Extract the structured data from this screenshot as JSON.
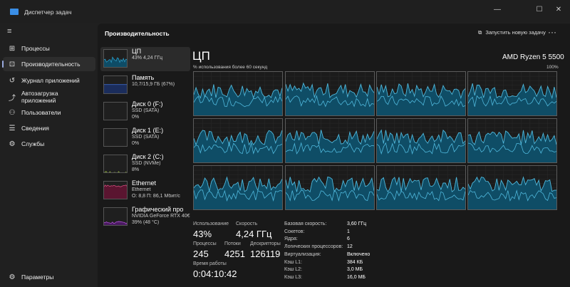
{
  "window": {
    "title": "Диспетчер задач",
    "minimize": "—",
    "maximize": "☐",
    "close": "✕"
  },
  "sidebar": {
    "items": [
      {
        "label": "Процессы",
        "icon": "processes-icon",
        "glyph": "⊞"
      },
      {
        "label": "Производительность",
        "icon": "performance-icon",
        "glyph": "⊡"
      },
      {
        "label": "Журнал приложений",
        "icon": "history-icon",
        "glyph": "↺"
      },
      {
        "label": "Автозагрузка приложений",
        "icon": "startup-icon",
        "glyph": "⤴"
      },
      {
        "label": "Пользователи",
        "icon": "users-icon",
        "glyph": "⚇"
      },
      {
        "label": "Сведения",
        "icon": "details-icon",
        "glyph": "☰"
      },
      {
        "label": "Службы",
        "icon": "services-icon",
        "glyph": "⚙"
      }
    ],
    "settings": "Параметры"
  },
  "header": {
    "title": "Производительность",
    "new_task": "Запустить новую задачу",
    "more": "···"
  },
  "devices": [
    {
      "name": "ЦП",
      "l1": "43% 4,24 ГГц",
      "l2": "",
      "color": "#2a9cc8",
      "fill": "#0e4c66"
    },
    {
      "name": "Память",
      "l1": "10,7/15,9 ГБ (67%)",
      "l2": "",
      "color": "#3a66c4",
      "fill": "#1b2d5c"
    },
    {
      "name": "Диск 0 (F:)",
      "l1": "SSD (SATA)",
      "l2": "0%",
      "color": "#7fa83a",
      "fill": "#1f1f1f"
    },
    {
      "name": "Диск 1 (E:)",
      "l1": "SSD (SATA)",
      "l2": "0%",
      "color": "#7fa83a",
      "fill": "#1f1f1f"
    },
    {
      "name": "Диск 2 (C:)",
      "l1": "SSD (NVMe)",
      "l2": "8%",
      "color": "#8fb03a",
      "fill": "#1f1f1f"
    },
    {
      "name": "Ethernet",
      "l1": "Ethernet",
      "l2": "О: 8,8 П: 86,1 Мбит/с",
      "color": "#d04a7a",
      "fill": "#5a1530"
    },
    {
      "name": "Графический про",
      "l1": "NVIDIA GeForce RTX 40€",
      "l2": "39% (48 °C)",
      "color": "#b050d8",
      "fill": "#4a1a60"
    }
  ],
  "cpu": {
    "title": "ЦП",
    "model": "AMD Ryzen 5 5500",
    "caption": "% использования более 60 секунд",
    "max": "100%",
    "line_color": "#4fb8dc",
    "fill_color": "#0f4d66",
    "stats": {
      "usage_label": "Использование",
      "usage": "43%",
      "speed_label": "Скорость",
      "speed": "4,24 ГГц",
      "proc_label": "Процессы",
      "proc": "245",
      "threads_label": "Потоки",
      "threads": "4251",
      "handles_label": "Дескрипторы",
      "handles": "126119",
      "uptime_label": "Время работы",
      "uptime": "0:04:10:42"
    },
    "specs": [
      [
        "Базовая скорость:",
        "3,60 ГГц"
      ],
      [
        "Сокетов:",
        "1"
      ],
      [
        "Ядра:",
        "6"
      ],
      [
        "Логических процессоров:",
        "12"
      ],
      [
        "Виртуализация:",
        "Включено"
      ],
      [
        "Кэш L1:",
        "384 КБ"
      ],
      [
        "Кэш L2:",
        "3,0 МБ"
      ],
      [
        "Кэш L3:",
        "16,0 МБ"
      ]
    ]
  }
}
